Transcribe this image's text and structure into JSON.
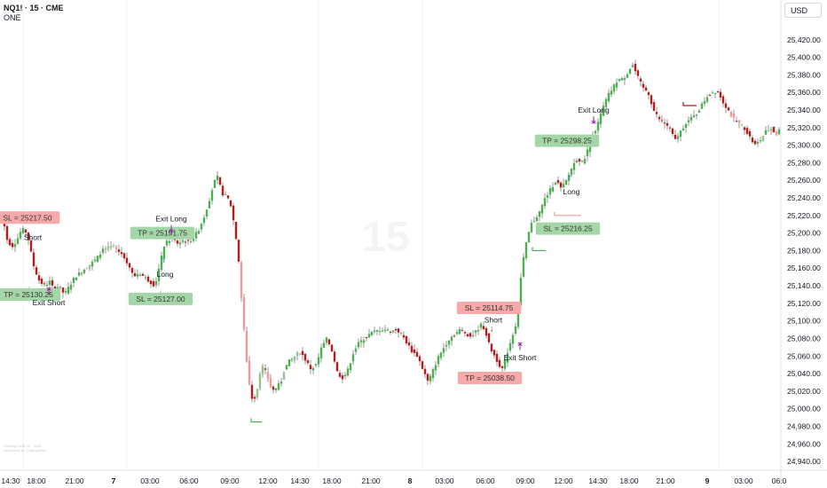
{
  "header": {
    "symbol": "NQ1! · 15 · CME",
    "indicator": "ONE"
  },
  "currency": "USD",
  "watermark": "15",
  "footnote": [
    "Strategy ONE v1 · 2025",
    "Generated by TradingView"
  ],
  "colors": {
    "bull": "#4caf50",
    "bear": "#b71c1c",
    "bull_soft": "#8fc48e",
    "bear_soft": "#ef9a9a",
    "tp": "#a5d6a7",
    "sl": "#f7a8a8",
    "purple": "#9c27b0",
    "blue": "#1e88e5"
  },
  "chart_data": {
    "type": "candlestick",
    "symbol": "NQ1!",
    "interval": "15",
    "exchange": "CME",
    "y_axis": {
      "range": [
        24930,
        25445
      ],
      "ticks": [
        24940,
        24960,
        24980,
        25000,
        25020,
        25040,
        25060,
        25080,
        25100,
        25120,
        25140,
        25160,
        25180,
        25200,
        25220,
        25240,
        25260,
        25280,
        25300,
        25320,
        25340,
        25360,
        25380,
        25400,
        25420
      ],
      "tick_labels": [
        "24,940.00",
        "24,960.00",
        "24,980.00",
        "25,000.00",
        "25,020.00",
        "25,040.00",
        "25,060.00",
        "25,080.00",
        "25,100.00",
        "25,120.00",
        "25,140.00",
        "25,160.00",
        "25,180.00",
        "25,200.00",
        "25,220.00",
        "25,240.00",
        "25,260.00",
        "25,280.00",
        "25,300.00",
        "25,320.00",
        "25,340.00",
        "25,360.00",
        "25,380.00",
        "25,400.00",
        "25,420.00"
      ]
    },
    "x_axis": {
      "ticks": [
        {
          "label": "14:30",
          "bold": false
        },
        {
          "label": "18:00",
          "bold": false
        },
        {
          "label": "21:00",
          "bold": false
        },
        {
          "label": "7",
          "bold": true
        },
        {
          "label": "03:00",
          "bold": false
        },
        {
          "label": "06:00",
          "bold": false
        },
        {
          "label": "09:00",
          "bold": false
        },
        {
          "label": "12:00",
          "bold": false
        },
        {
          "label": "14:30",
          "bold": false
        },
        {
          "label": "18:00",
          "bold": false
        },
        {
          "label": "21:00",
          "bold": false
        },
        {
          "label": "8",
          "bold": true
        },
        {
          "label": "03:00",
          "bold": false
        },
        {
          "label": "06:00",
          "bold": false
        },
        {
          "label": "09:00",
          "bold": false
        },
        {
          "label": "12:00",
          "bold": false
        },
        {
          "label": "14:30",
          "bold": false
        },
        {
          "label": "18:00",
          "bold": false
        },
        {
          "label": "21:00",
          "bold": false
        },
        {
          "label": "9",
          "bold": true
        },
        {
          "label": "03:00",
          "bold": false
        },
        {
          "label": "06:0",
          "bold": false
        }
      ]
    },
    "path_points": [
      [
        0,
        25225
      ],
      [
        6,
        25210
      ],
      [
        10,
        25190
      ],
      [
        16,
        25185
      ],
      [
        22,
        25195
      ],
      [
        26,
        25205
      ],
      [
        32,
        25200
      ],
      [
        36,
        25180
      ],
      [
        40,
        25160
      ],
      [
        46,
        25145
      ],
      [
        52,
        25140
      ],
      [
        58,
        25145
      ],
      [
        62,
        25135
      ],
      [
        68,
        25140
      ],
      [
        74,
        25130
      ],
      [
        80,
        25140
      ],
      [
        86,
        25150
      ],
      [
        92,
        25155
      ],
      [
        98,
        25160
      ],
      [
        104,
        25165
      ],
      [
        110,
        25170
      ],
      [
        116,
        25180
      ],
      [
        122,
        25182
      ],
      [
        128,
        25185
      ],
      [
        134,
        25180
      ],
      [
        140,
        25175
      ],
      [
        146,
        25165
      ],
      [
        152,
        25150
      ],
      [
        158,
        25155
      ],
      [
        164,
        25150
      ],
      [
        170,
        25145
      ],
      [
        176,
        25140
      ],
      [
        182,
        25165
      ],
      [
        186,
        25185
      ],
      [
        190,
        25190
      ],
      [
        196,
        25195
      ],
      [
        202,
        25188
      ],
      [
        208,
        25192
      ],
      [
        214,
        25190
      ],
      [
        220,
        25195
      ],
      [
        226,
        25205
      ],
      [
        232,
        25220
      ],
      [
        238,
        25240
      ],
      [
        242,
        25255
      ],
      [
        246,
        25265
      ],
      [
        252,
        25245
      ],
      [
        258,
        25240
      ],
      [
        262,
        25230
      ],
      [
        266,
        25205
      ],
      [
        270,
        25175
      ],
      [
        274,
        25120
      ],
      [
        278,
        25070
      ],
      [
        282,
        25030
      ],
      [
        286,
        25010
      ],
      [
        290,
        25015
      ],
      [
        296,
        25050
      ],
      [
        302,
        25040
      ],
      [
        308,
        25020
      ],
      [
        314,
        25025
      ],
      [
        318,
        25030
      ],
      [
        322,
        25045
      ],
      [
        328,
        25055
      ],
      [
        334,
        25060
      ],
      [
        340,
        25065
      ],
      [
        346,
        25055
      ],
      [
        352,
        25045
      ],
      [
        358,
        25050
      ],
      [
        364,
        25070
      ],
      [
        370,
        25080
      ],
      [
        376,
        25065
      ],
      [
        382,
        25040
      ],
      [
        388,
        25035
      ],
      [
        394,
        25045
      ],
      [
        400,
        25065
      ],
      [
        406,
        25075
      ],
      [
        412,
        25080
      ],
      [
        418,
        25085
      ],
      [
        424,
        25088
      ],
      [
        430,
        25090
      ],
      [
        436,
        25090
      ],
      [
        442,
        25088
      ],
      [
        448,
        25090
      ],
      [
        454,
        25085
      ],
      [
        460,
        25075
      ],
      [
        466,
        25065
      ],
      [
        472,
        25060
      ],
      [
        478,
        25045
      ],
      [
        484,
        25030
      ],
      [
        490,
        25045
      ],
      [
        496,
        25060
      ],
      [
        502,
        25070
      ],
      [
        508,
        25080
      ],
      [
        514,
        25085
      ],
      [
        520,
        25090
      ],
      [
        526,
        25086
      ],
      [
        532,
        25082
      ],
      [
        538,
        25088
      ],
      [
        544,
        25096
      ],
      [
        548,
        25090
      ],
      [
        552,
        25075
      ],
      [
        556,
        25065
      ],
      [
        560,
        25058
      ],
      [
        564,
        25050
      ],
      [
        568,
        25045
      ],
      [
        572,
        25060
      ],
      [
        578,
        25080
      ],
      [
        584,
        25100
      ],
      [
        588,
        25145
      ],
      [
        592,
        25175
      ],
      [
        596,
        25195
      ],
      [
        600,
        25210
      ],
      [
        604,
        25215
      ],
      [
        610,
        25225
      ],
      [
        616,
        25240
      ],
      [
        622,
        25250
      ],
      [
        628,
        25260
      ],
      [
        634,
        25250
      ],
      [
        640,
        25260
      ],
      [
        646,
        25275
      ],
      [
        652,
        25285
      ],
      [
        658,
        25280
      ],
      [
        664,
        25295
      ],
      [
        668,
        25310
      ],
      [
        674,
        25320
      ],
      [
        680,
        25340
      ],
      [
        686,
        25355
      ],
      [
        692,
        25365
      ],
      [
        698,
        25375
      ],
      [
        704,
        25375
      ],
      [
        710,
        25385
      ],
      [
        714,
        25392
      ],
      [
        720,
        25378
      ],
      [
        726,
        25365
      ],
      [
        732,
        25360
      ],
      [
        738,
        25340
      ],
      [
        744,
        25330
      ],
      [
        750,
        25325
      ],
      [
        756,
        25320
      ],
      [
        762,
        25305
      ],
      [
        768,
        25315
      ],
      [
        774,
        25325
      ],
      [
        780,
        25330
      ],
      [
        786,
        25335
      ],
      [
        792,
        25345
      ],
      [
        798,
        25355
      ],
      [
        804,
        25360
      ],
      [
        810,
        25362
      ],
      [
        816,
        25350
      ],
      [
        822,
        25340
      ],
      [
        828,
        25330
      ],
      [
        834,
        25325
      ],
      [
        840,
        25320
      ],
      [
        846,
        25310
      ],
      [
        852,
        25300
      ],
      [
        858,
        25305
      ],
      [
        864,
        25315
      ],
      [
        870,
        25320
      ],
      [
        876,
        25312
      ],
      [
        880,
        25318
      ]
    ],
    "annotations": [
      {
        "type": "sl_label",
        "text": "SL = 25217.50",
        "time_px": 31,
        "price": 25217.5
      },
      {
        "type": "signal",
        "text": "Short",
        "time_px": 37,
        "price": 25192
      },
      {
        "type": "tp_label",
        "text": "TP = 25130.25",
        "time_px": 32,
        "price": 25130
      },
      {
        "type": "exit",
        "text": "Exit Short",
        "time_px": 55,
        "price": 25118
      },
      {
        "type": "tp_label",
        "text": "TP = 25191.75",
        "time_px": 183,
        "price": 25200
      },
      {
        "type": "exit",
        "text": "Exit Long",
        "time_px": 193,
        "price": 25213
      },
      {
        "type": "signal",
        "text": "Long",
        "time_px": 186,
        "price": 25150
      },
      {
        "type": "tp_label",
        "text": "SL = 25127.00",
        "time_px": 181,
        "price": 25125
      },
      {
        "type": "sl_label",
        "text": "SL = 25114.75",
        "time_px": 551,
        "price": 25114.75
      },
      {
        "type": "signal",
        "text": "Short",
        "time_px": 556,
        "price": 25098
      },
      {
        "type": "exit",
        "text": "Exit Short",
        "time_px": 586,
        "price": 25055
      },
      {
        "type": "sl_label",
        "text": "TP = 25038.50",
        "time_px": 552,
        "price": 25035
      },
      {
        "type": "tp_label",
        "text": "TP = 25298.25",
        "time_px": 639,
        "price": 25305
      },
      {
        "type": "exit",
        "text": "Exit Long",
        "time_px": 669,
        "price": 25337
      },
      {
        "type": "signal",
        "text": "Long",
        "time_px": 644,
        "price": 25244
      },
      {
        "type": "tp_label",
        "text": "SL = 25216.25",
        "time_px": 640,
        "price": 25205
      }
    ],
    "title": "",
    "xlabel": "",
    "ylabel": "",
    "grid": true,
    "legend": "none"
  }
}
